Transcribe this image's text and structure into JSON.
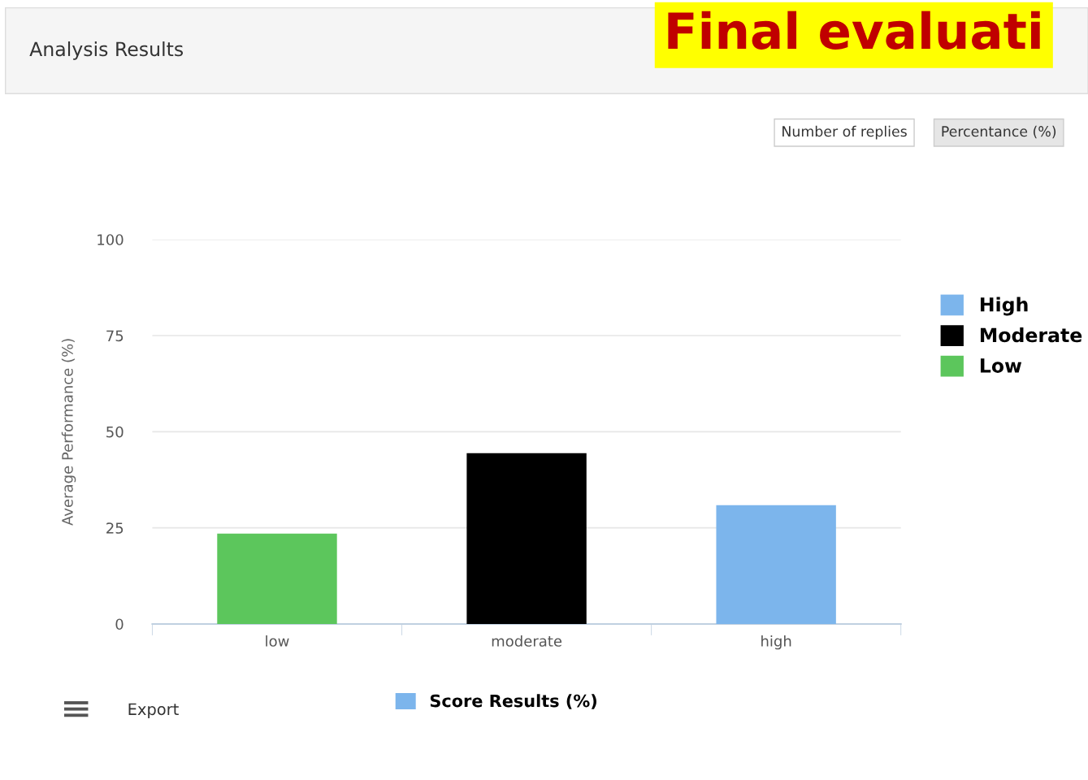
{
  "chart_data": {
    "type": "bar",
    "title": "Analysis Results",
    "ylabel": "Average Performance (%)",
    "categories": [
      "low",
      "moderate",
      "high"
    ],
    "series": [
      {
        "name": "High",
        "color": "#7cb5ec",
        "values": [
          null,
          null,
          30.9
        ]
      },
      {
        "name": "Moderate",
        "color": "#000000",
        "values": [
          null,
          44.4,
          null
        ]
      },
      {
        "name": "Low",
        "color": "#5cc65c",
        "values": [
          23.5,
          null,
          null
        ]
      },
      {
        "name": "Score Results (%)",
        "color": "#7cb5ec",
        "values": [
          null,
          null,
          null
        ]
      }
    ],
    "ylim": [
      0,
      100
    ],
    "yticks": [
      0,
      25,
      50,
      75,
      100
    ],
    "grid": "y",
    "legend": "right",
    "annotations": [
      "Final evaluati",
      "Number of replies",
      "Percentance (%)",
      "Export"
    ]
  }
}
